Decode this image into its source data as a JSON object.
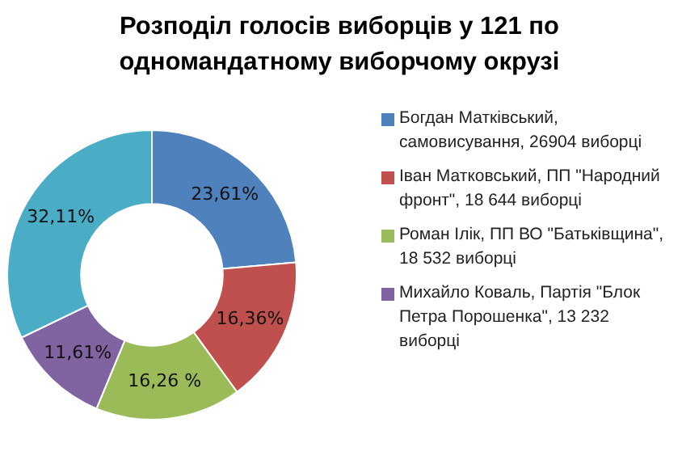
{
  "chart_data": {
    "type": "donut",
    "title": "Розподіл  голосів виборців  у 121 по одномандатному  виборчому  окрузі",
    "categories": [
      "Богдан Матківський, самовисування, 26904 виборці",
      "Іван Матковський,  ПП \"Народний фронт\", 18 644 виборці",
      "Роман Ілік, ПП ВО \"Батьківщина\", 18 532 виборці",
      "Михайло Коваль, Партія \"Блок Петра Порошенка\",  13 232 виборці",
      null
    ],
    "values": [
      23.61,
      16.36,
      16.26,
      11.61,
      32.11
    ],
    "value_labels": [
      "23,61%",
      "16,36%",
      "16,26 %",
      "11,61%",
      "32,11%"
    ],
    "colors": [
      "#4f81bd",
      "#c0504d",
      "#9bbb59",
      "#8064a2",
      "#4bacc6"
    ],
    "legend": "right"
  }
}
